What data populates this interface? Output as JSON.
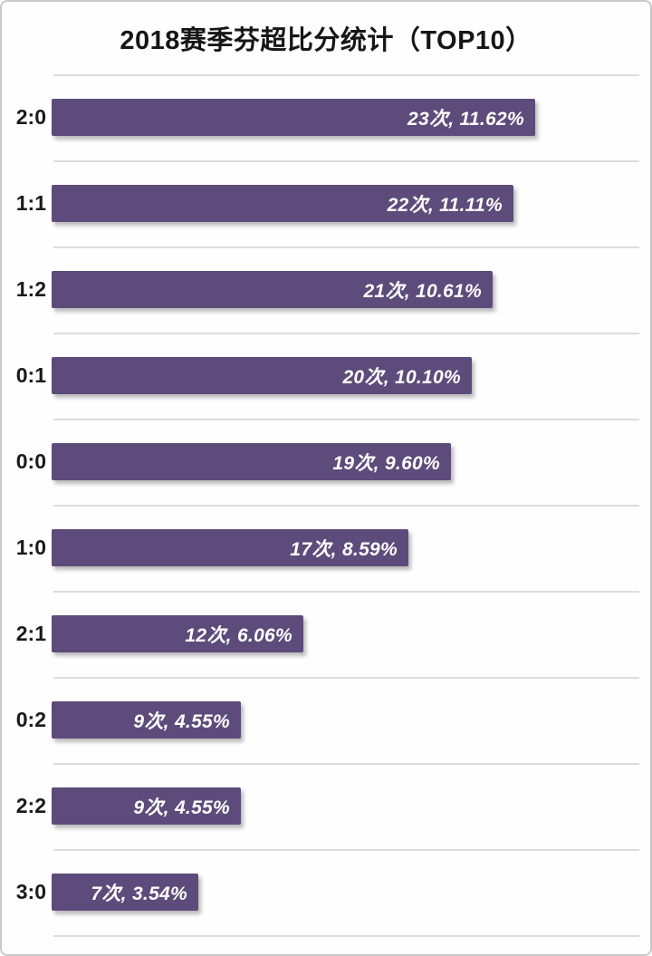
{
  "page": {
    "background_color": "#fefefe",
    "frame_border_color": "#c9c9c9",
    "separator_color": "#dcdcdc"
  },
  "chart_data": {
    "type": "bar",
    "orientation": "horizontal",
    "title": "2018赛季芬超比分统计（TOP10）",
    "categories": [
      "2:0",
      "1:1",
      "1:2",
      "0:1",
      "0:0",
      "1:0",
      "2:1",
      "0:2",
      "2:2",
      "3:0"
    ],
    "values": [
      23,
      22,
      21,
      20,
      19,
      17,
      12,
      9,
      9,
      7
    ],
    "percentages": [
      11.62,
      11.11,
      10.61,
      10.1,
      9.6,
      8.59,
      6.06,
      4.55,
      4.55,
      3.54
    ],
    "bar_labels": [
      "23次, 11.62%",
      "22次, 11.11%",
      "21次, 10.61%",
      "20次, 10.10%",
      "19次, 9.60%",
      "17次, 8.59%",
      "12次, 6.06%",
      "9次, 4.55%",
      "9次, 4.55%",
      "7次, 3.54%"
    ],
    "bar_color": "#5d4b7b",
    "bar_label_color": "#ffffff",
    "category_label_color": "#1a1a1a",
    "title_color": "#161616",
    "grid": true,
    "legend": "none",
    "value_axis_visible": false,
    "xlim": [
      0,
      25
    ]
  }
}
